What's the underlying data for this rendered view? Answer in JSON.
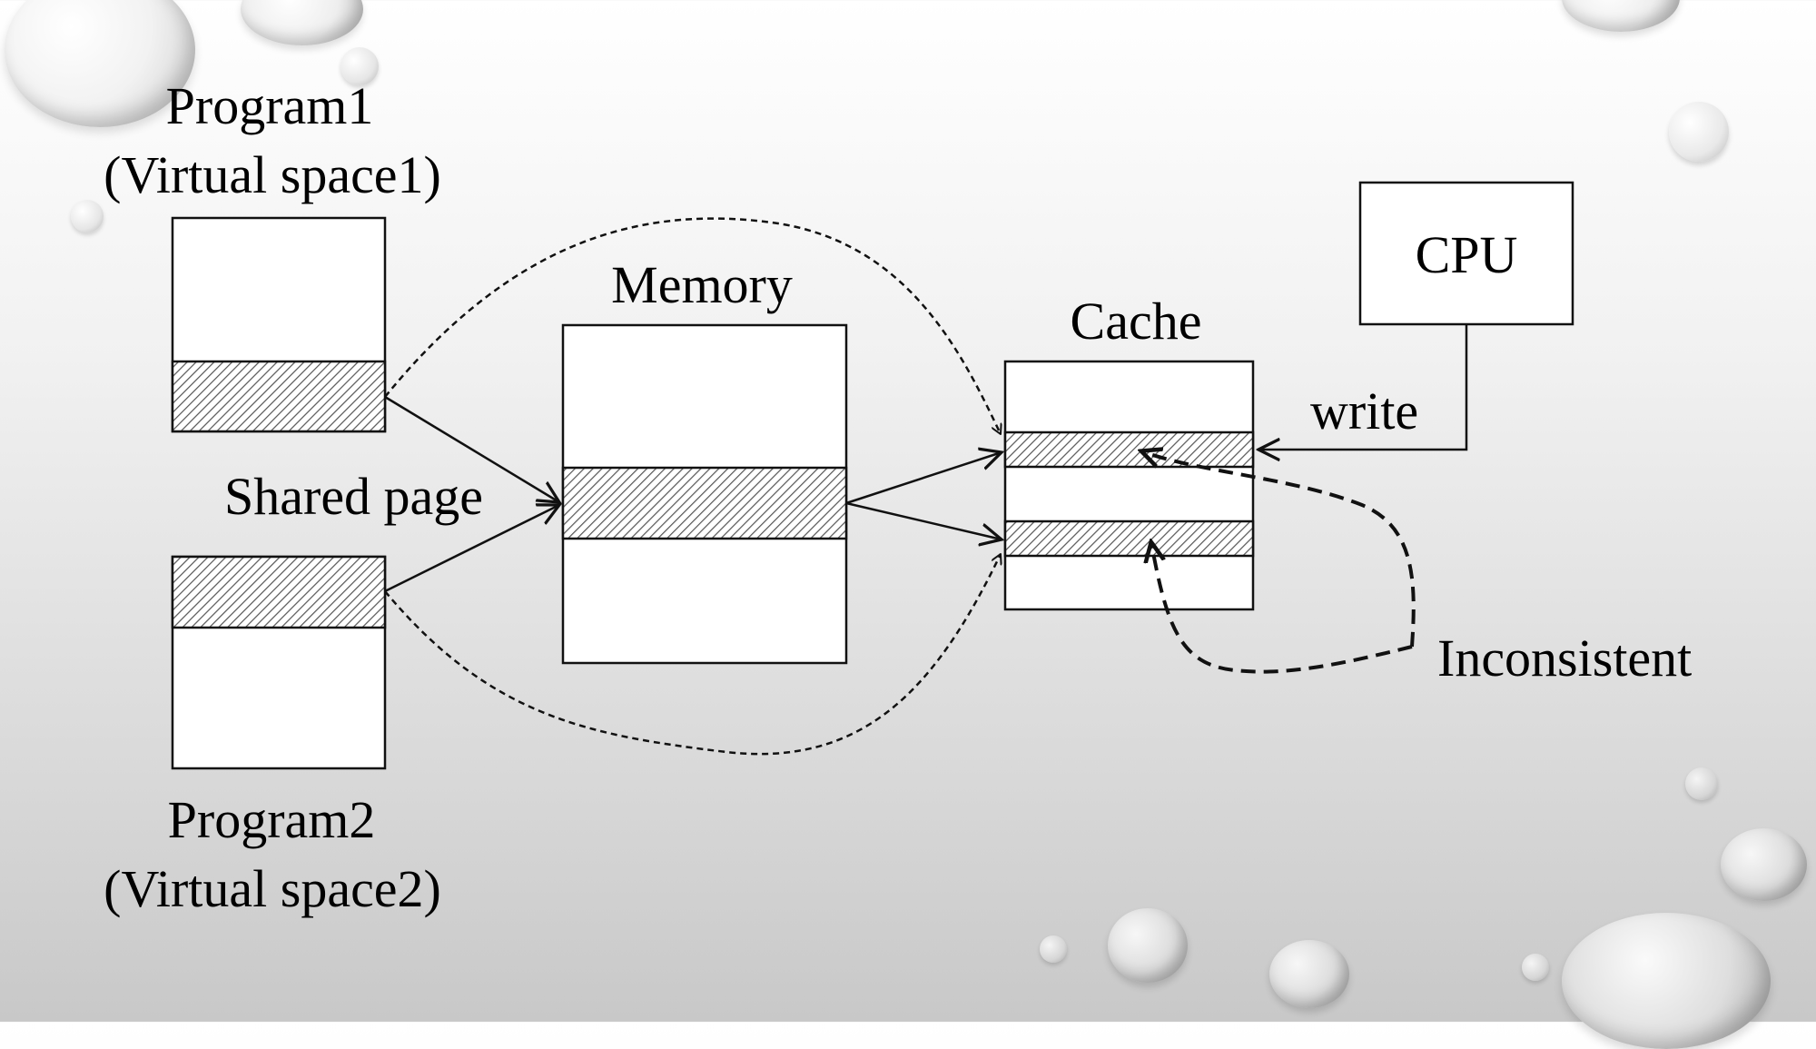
{
  "labels": {
    "program1_line1": "Program1",
    "program1_line2": "(Virtual space1)",
    "program2_line1": "Program2",
    "program2_line2": "(Virtual space2)",
    "memory": "Memory",
    "cache": "Cache",
    "cpu": "CPU",
    "shared_page": "Shared page",
    "write": "write",
    "inconsistent": "Inconsistent"
  },
  "colors": {
    "stroke": "#111111",
    "hatch": "#555555",
    "fill": "#ffffff"
  }
}
